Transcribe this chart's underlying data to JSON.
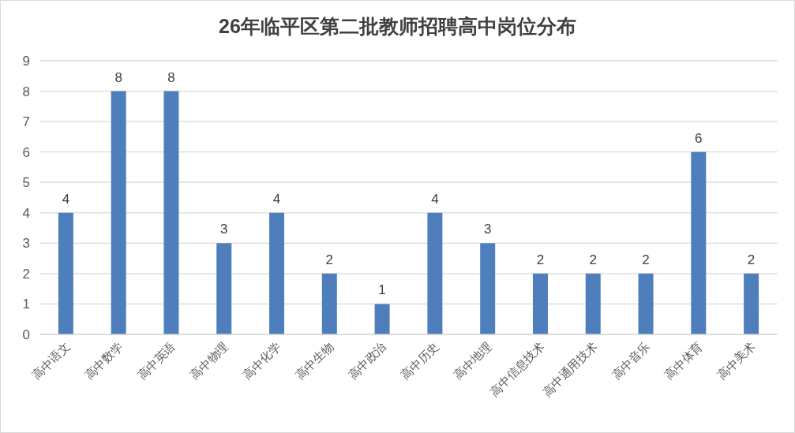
{
  "chart_data": {
    "type": "bar",
    "title": "26年临平区第二批教师招聘高中岗位分布",
    "categories": [
      "高中语文",
      "高中数学",
      "高中英语",
      "高中物理",
      "高中化学",
      "高中生物",
      "高中政治",
      "高中历史",
      "高中地理",
      "高中信息技术",
      "高中通用技术",
      "高中音乐",
      "高中体育",
      "高中美术"
    ],
    "values": [
      4,
      8,
      8,
      3,
      4,
      2,
      1,
      4,
      3,
      2,
      2,
      2,
      6,
      2
    ],
    "color": "#4e7fbc",
    "ylim": [
      0,
      9
    ],
    "yticks": [
      0,
      1,
      2,
      3,
      4,
      5,
      6,
      7,
      8,
      9
    ],
    "grid": "y",
    "data_labels": true
  }
}
